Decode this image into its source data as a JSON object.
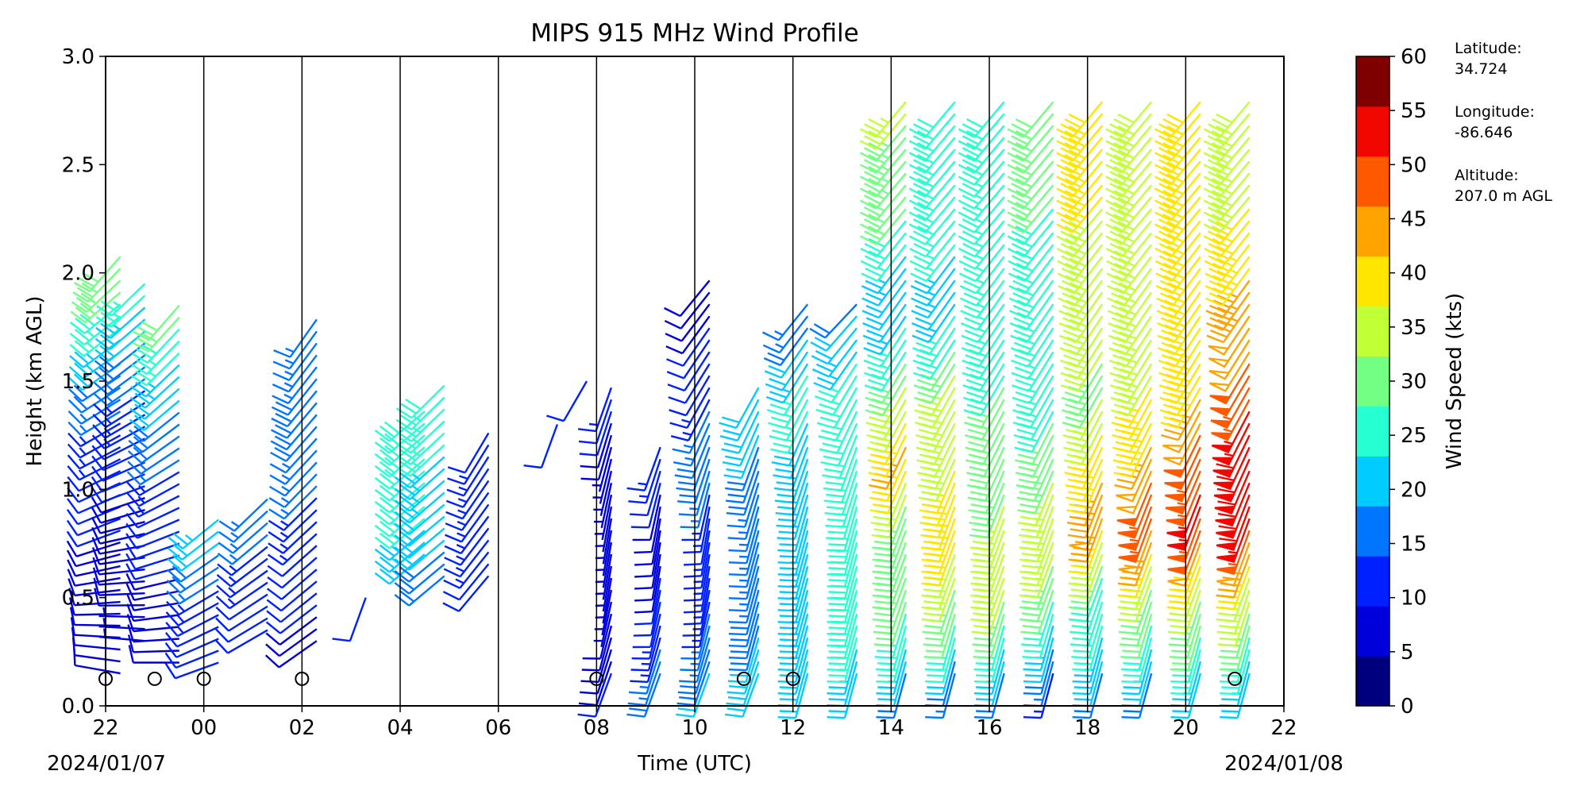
{
  "chart_data": {
    "type": "wind_barb",
    "title": "MIPS 915 MHz Wind Profile",
    "xlabel": "Time (UTC)",
    "ylabel": "Height (km AGL)",
    "xlim": [
      0,
      24
    ],
    "ylim": [
      0,
      3
    ],
    "x_tick_labels": [
      "22",
      "00",
      "02",
      "04",
      "06",
      "08",
      "10",
      "12",
      "14",
      "16",
      "18",
      "20",
      "22"
    ],
    "y_tick_labels": [
      "0.0",
      "0.5",
      "1.0",
      "1.5",
      "2.0",
      "2.5",
      "3.0"
    ],
    "date_start": "2024/01/07",
    "date_end": "2024/01/08",
    "vertical_grid_lines": "every 2 hours",
    "colorbar": {
      "label": "Wind Speed (kts)",
      "ticks": [
        "0",
        "5",
        "10",
        "15",
        "20",
        "25",
        "30",
        "35",
        "40",
        "45",
        "50",
        "55",
        "60"
      ],
      "colors": [
        "#00007f",
        "#0000da",
        "#0020ff",
        "#0076ff",
        "#00ccff",
        "#26ffd1",
        "#72ff84",
        "#c1ff36",
        "#ffe600",
        "#ffa300",
        "#ff5900",
        "#f10700",
        "#7f0000"
      ]
    },
    "calm_marker_hours": [
      0,
      1,
      2,
      4,
      10,
      13,
      14,
      23
    ],
    "profiles": [
      {
        "hour": 0.3,
        "heights": [
          0.15,
          0.4,
          0.8,
          1.3,
          1.9,
          2.1
        ],
        "speeds": [
          8,
          9,
          10,
          14,
          30,
          32
        ],
        "dirs": [
          280,
          270,
          250,
          240,
          230,
          220
        ]
      },
      {
        "hour": 0.8,
        "heights": [
          0.3,
          0.6,
          1.0,
          1.5,
          2.0
        ],
        "speeds": [
          7,
          8,
          10,
          15,
          28
        ],
        "dirs": [
          275,
          265,
          250,
          235,
          225
        ]
      },
      {
        "hour": 1.5,
        "heights": [
          0.2,
          0.5,
          0.9,
          1.4,
          1.9
        ],
        "speeds": [
          8,
          9,
          12,
          20,
          33
        ],
        "dirs": [
          270,
          260,
          245,
          230,
          220
        ]
      },
      {
        "hour": 2.3,
        "heights": [
          0.2,
          0.5,
          0.9
        ],
        "speeds": [
          10,
          14,
          24
        ],
        "dirs": [
          250,
          240,
          230
        ]
      },
      {
        "hour": 3.3,
        "heights": [
          0.35,
          0.6,
          1.0
        ],
        "speeds": [
          10,
          13,
          18
        ],
        "dirs": [
          240,
          235,
          225
        ]
      },
      {
        "hour": 4.3,
        "heights": [
          0.3,
          0.6,
          1.4,
          1.8
        ],
        "speeds": [
          9,
          11,
          19,
          15
        ],
        "dirs": [
          235,
          230,
          220,
          215
        ]
      },
      {
        "hour": 5.3,
        "heights": [
          0.5
        ],
        "speeds": [
          10
        ],
        "dirs": [
          200
        ]
      },
      {
        "hour": 6.5,
        "heights": [
          0.7,
          1.4
        ],
        "speeds": [
          24,
          30
        ],
        "dirs": [
          230,
          230
        ]
      },
      {
        "hour": 6.9,
        "heights": [
          0.6,
          0.9,
          1.5
        ],
        "speeds": [
          18,
          22,
          28
        ],
        "dirs": [
          230,
          230,
          225
        ]
      },
      {
        "hour": 7.8,
        "heights": [
          0.6,
          1.0,
          1.3
        ],
        "speeds": [
          12,
          14,
          12
        ],
        "dirs": [
          220,
          215,
          210
        ]
      },
      {
        "hour": 9.2,
        "heights": [
          1.3
        ],
        "speeds": [
          10
        ],
        "dirs": [
          200
        ]
      },
      {
        "hour": 9.8,
        "heights": [
          1.5
        ],
        "speeds": [
          12
        ],
        "dirs": [
          210
        ]
      },
      {
        "hour": 10.3,
        "heights": [
          0.15,
          0.35,
          0.6,
          0.9,
          1.2,
          1.5
        ],
        "speeds": [
          10,
          8,
          7,
          6,
          6,
          15
        ],
        "dirs": [
          200,
          195,
          190,
          190,
          195,
          200
        ]
      },
      {
        "hour": 11.3,
        "heights": [
          0.15,
          0.35,
          0.6,
          0.9,
          1.2
        ],
        "speeds": [
          18,
          14,
          10,
          8,
          15
        ],
        "dirs": [
          200,
          195,
          190,
          190,
          200
        ]
      },
      {
        "hour": 12.3,
        "heights": [
          0.15,
          0.35,
          0.6,
          0.9,
          1.2,
          1.5,
          2.0
        ],
        "speeds": [
          20,
          16,
          14,
          12,
          20,
          12,
          8
        ],
        "dirs": [
          200,
          195,
          190,
          190,
          200,
          210,
          220
        ]
      },
      {
        "hour": 13.3,
        "heights": [
          0.15,
          0.35,
          0.6,
          0.9,
          1.2,
          1.5
        ],
        "speeds": [
          22,
          20,
          17,
          15,
          20,
          22
        ],
        "dirs": [
          200,
          195,
          195,
          195,
          200,
          210
        ]
      },
      {
        "hour": 14.3,
        "heights": [
          0.15,
          0.35,
          0.6,
          0.9,
          1.2,
          1.5,
          1.9
        ],
        "speeds": [
          20,
          23,
          24,
          22,
          24,
          26,
          14
        ],
        "dirs": [
          195,
          195,
          195,
          195,
          200,
          210,
          220
        ]
      },
      {
        "hour": 15.3,
        "heights": [
          0.15,
          0.35,
          0.6,
          0.9,
          1.2,
          1.5,
          1.9
        ],
        "speeds": [
          20,
          28,
          30,
          28,
          26,
          28,
          18
        ],
        "dirs": [
          195,
          195,
          195,
          195,
          200,
          210,
          225
        ]
      },
      {
        "hour": 16.3,
        "heights": [
          0.15,
          0.35,
          0.6,
          0.9,
          1.2,
          1.5,
          1.9,
          2.3,
          2.8
        ],
        "speeds": [
          18,
          27,
          33,
          33,
          46,
          34,
          20,
          31,
          36
        ],
        "dirs": [
          195,
          195,
          200,
          200,
          205,
          210,
          215,
          220,
          220
        ]
      },
      {
        "hour": 17.3,
        "heights": [
          0.15,
          0.35,
          0.6,
          0.9,
          1.2,
          1.5,
          1.9,
          2.3,
          2.8
        ],
        "speeds": [
          15,
          28,
          36,
          45,
          38,
          37,
          22,
          28,
          28
        ],
        "dirs": [
          195,
          195,
          200,
          200,
          205,
          210,
          215,
          220,
          220
        ]
      },
      {
        "hour": 18.3,
        "heights": [
          0.15,
          0.35,
          0.6,
          0.9,
          1.2,
          1.5,
          1.9,
          2.3,
          2.8
        ],
        "speeds": [
          18,
          29,
          38,
          36,
          30,
          30,
          26,
          27,
          28
        ],
        "dirs": [
          195,
          195,
          200,
          200,
          205,
          210,
          215,
          220,
          220
        ]
      },
      {
        "hour": 19.3,
        "heights": [
          0.15,
          0.35,
          0.6,
          0.9,
          1.2,
          1.5,
          1.9,
          2.3,
          2.8
        ],
        "speeds": [
          14,
          24,
          33,
          39,
          32,
          27,
          28,
          30,
          32
        ],
        "dirs": [
          195,
          195,
          200,
          200,
          205,
          210,
          215,
          220,
          220
        ]
      },
      {
        "hour": 20.3,
        "heights": [
          0.15,
          0.35,
          0.6,
          0.9,
          1.2,
          1.5,
          1.9,
          2.3,
          2.8
        ],
        "speeds": [
          18,
          26,
          30,
          48,
          42,
          34,
          38,
          40,
          42
        ],
        "dirs": [
          195,
          195,
          200,
          200,
          205,
          210,
          215,
          220,
          220
        ]
      },
      {
        "hour": 21.3,
        "heights": [
          0.15,
          0.35,
          0.6,
          0.9,
          1.2,
          1.5,
          1.9,
          2.3,
          2.8
        ],
        "speeds": [
          18,
          28,
          36,
          55,
          46,
          40,
          39,
          39,
          40
        ],
        "dirs": [
          195,
          195,
          200,
          200,
          205,
          210,
          215,
          220,
          220
        ]
      },
      {
        "hour": 22.3,
        "heights": [
          0.15,
          0.35,
          0.6,
          0.9,
          1.2,
          1.5,
          1.9,
          2.3,
          2.8
        ],
        "speeds": [
          20,
          30,
          38,
          57,
          52,
          44,
          41,
          40,
          40
        ],
        "dirs": [
          195,
          195,
          200,
          200,
          205,
          210,
          215,
          220,
          220
        ]
      },
      {
        "hour": 23.3,
        "heights": [
          0.15,
          0.35,
          0.6,
          0.9,
          1.2,
          1.5,
          1.9,
          2.3,
          2.8
        ],
        "speeds": [
          22,
          30,
          40,
          58,
          60,
          52,
          46,
          40,
          38
        ],
        "dirs": [
          195,
          195,
          200,
          200,
          205,
          210,
          215,
          220,
          220
        ]
      }
    ]
  },
  "station": {
    "latitude_label": "Latitude:",
    "latitude_value": "34.724",
    "longitude_label": "Longitude:",
    "longitude_value": "-86.646",
    "altitude_label": "Altitude:",
    "altitude_value": "207.0 m AGL"
  }
}
